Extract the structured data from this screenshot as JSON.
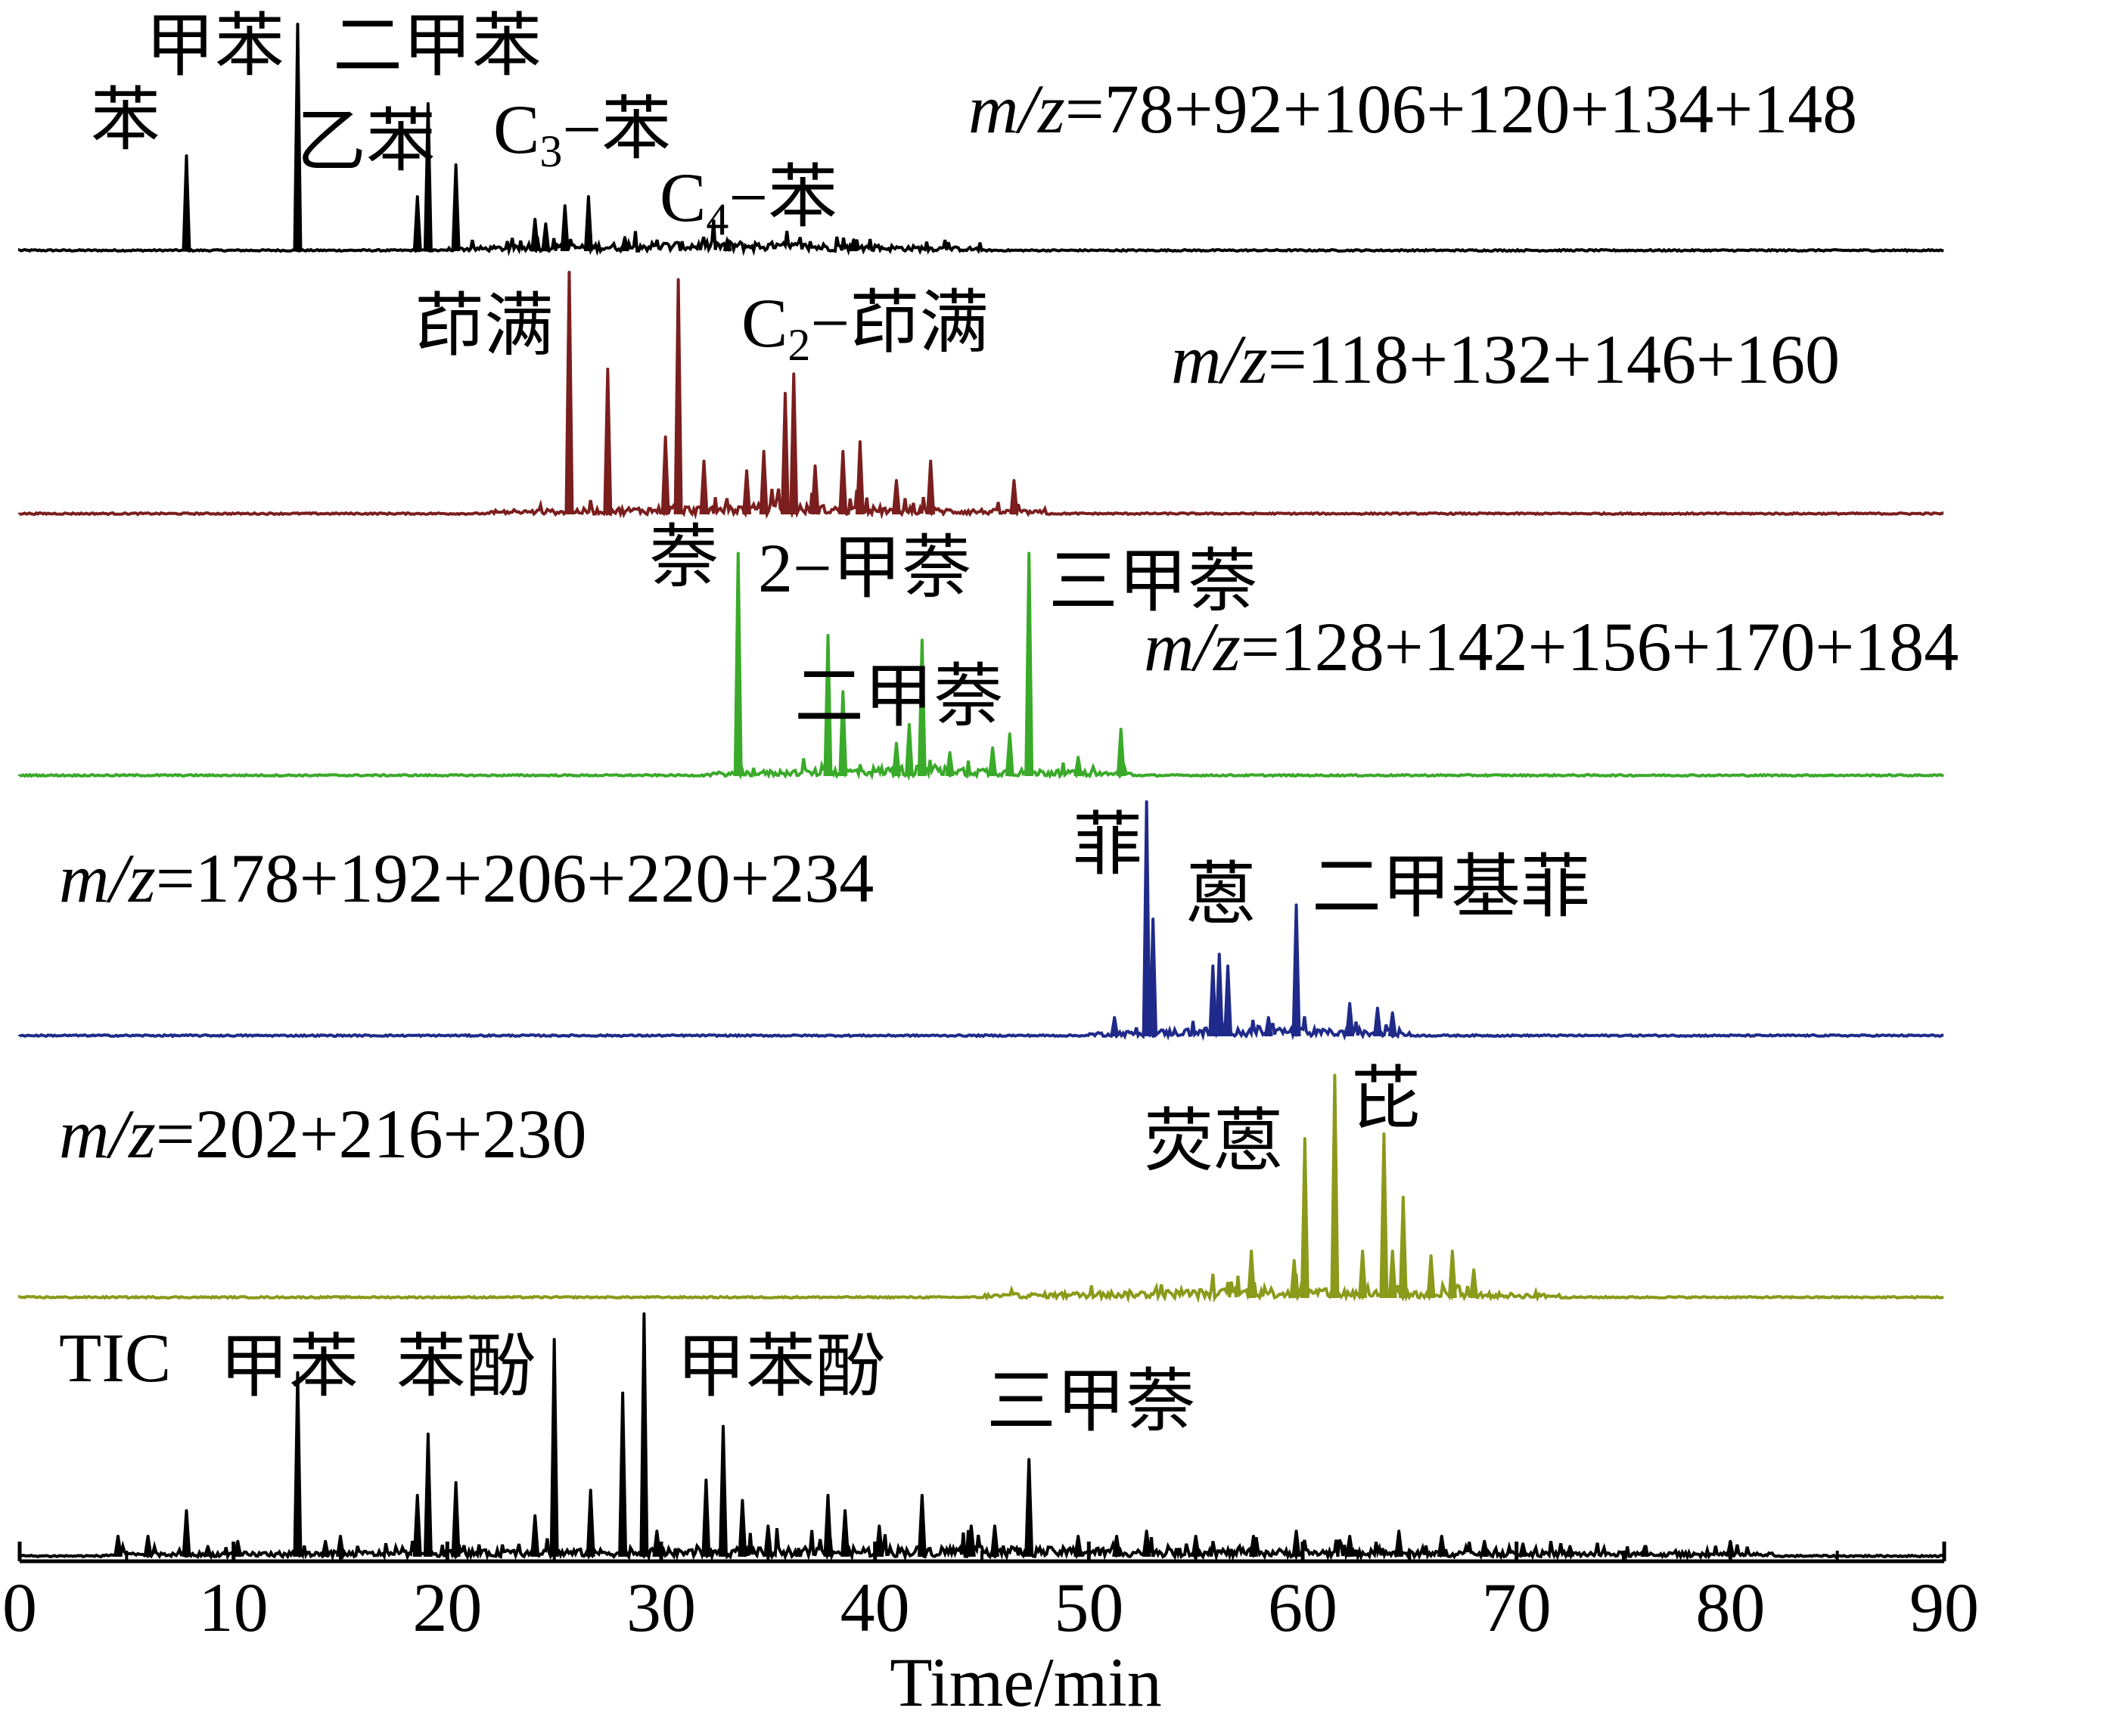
{
  "chart_data": {
    "type": "line",
    "x_axis": {
      "label": "Time/min",
      "range": [
        0,
        90
      ],
      "ticks": [
        "0",
        "10",
        "20",
        "30",
        "40",
        "50",
        "60",
        "70",
        "80",
        "90"
      ]
    },
    "grid": false,
    "panels": [
      {
        "id": "p1",
        "color": "#000000",
        "ion_label": "m/z=78+92+106+120+134+148",
        "ion_prefix": "m/z",
        "ion_values": "=78+92+106+120+134+148",
        "annotations": [
          "苯",
          "甲苯",
          "二甲苯",
          "乙苯",
          "C3−苯",
          "C4−苯"
        ],
        "peaks": [
          {
            "t": 7.8,
            "h": 0.42
          },
          {
            "t": 13.0,
            "h": 1.0
          },
          {
            "t": 18.6,
            "h": 0.24
          },
          {
            "t": 19.1,
            "h": 0.65
          },
          {
            "t": 20.4,
            "h": 0.38
          },
          {
            "t": 24.1,
            "h": 0.14
          },
          {
            "t": 24.6,
            "h": 0.12
          },
          {
            "t": 25.5,
            "h": 0.2
          },
          {
            "t": 26.6,
            "h": 0.24
          },
          {
            "t": 28.3,
            "h": 0.06
          },
          {
            "t": 33.1,
            "h": 0.05
          },
          {
            "t": 39.0,
            "h": 0.05
          }
        ]
      },
      {
        "id": "p2",
        "color": "#7b1e1e",
        "ion_label": "m/z=118+132+146+160",
        "ion_prefix": "m/z",
        "ion_values": "=118+132+146+160",
        "annotations": [
          "茚满",
          "C2−茚满"
        ],
        "peaks": [
          {
            "t": 25.7,
            "h": 1.0
          },
          {
            "t": 27.5,
            "h": 0.6
          },
          {
            "t": 30.2,
            "h": 0.32
          },
          {
            "t": 30.8,
            "h": 0.97
          },
          {
            "t": 32.0,
            "h": 0.22
          },
          {
            "t": 34.0,
            "h": 0.18
          },
          {
            "t": 34.8,
            "h": 0.26
          },
          {
            "t": 35.8,
            "h": 0.5
          },
          {
            "t": 36.2,
            "h": 0.58
          },
          {
            "t": 37.2,
            "h": 0.2
          },
          {
            "t": 38.5,
            "h": 0.26
          },
          {
            "t": 39.3,
            "h": 0.3
          },
          {
            "t": 41.0,
            "h": 0.14
          },
          {
            "t": 42.6,
            "h": 0.22
          },
          {
            "t": 46.5,
            "h": 0.14
          }
        ]
      },
      {
        "id": "p3",
        "color": "#3aaa2a",
        "ion_label": "m/z=128+142+156+170+184",
        "ion_prefix": "m/z",
        "ion_values": "=128+142+156+170+184",
        "annotations": [
          "萘",
          "2−甲萘",
          "二甲萘",
          "三甲萘"
        ],
        "peaks": [
          {
            "t": 33.6,
            "h": 0.95
          },
          {
            "t": 37.8,
            "h": 0.6
          },
          {
            "t": 38.5,
            "h": 0.36
          },
          {
            "t": 41.0,
            "h": 0.14
          },
          {
            "t": 41.6,
            "h": 0.22
          },
          {
            "t": 42.2,
            "h": 0.58
          },
          {
            "t": 43.5,
            "h": 0.1
          },
          {
            "t": 45.5,
            "h": 0.12
          },
          {
            "t": 46.3,
            "h": 0.18
          },
          {
            "t": 47.2,
            "h": 0.95
          },
          {
            "t": 49.5,
            "h": 0.08
          },
          {
            "t": 51.5,
            "h": 0.2
          }
        ]
      },
      {
        "id": "p4",
        "color": "#1f2a8a",
        "ion_label": "m/z=178+192+206+220+234",
        "ion_prefix": "m/z",
        "ion_values": "=178+192+206+220+234",
        "annotations": [
          "菲",
          "蒽",
          "二甲基菲"
        ],
        "peaks": [
          {
            "t": 51.2,
            "h": 0.08
          },
          {
            "t": 52.7,
            "h": 1.0
          },
          {
            "t": 53.0,
            "h": 0.5
          },
          {
            "t": 55.8,
            "h": 0.3
          },
          {
            "t": 56.1,
            "h": 0.35
          },
          {
            "t": 56.5,
            "h": 0.3
          },
          {
            "t": 58.4,
            "h": 0.08
          },
          {
            "t": 59.7,
            "h": 0.56
          },
          {
            "t": 62.2,
            "h": 0.14
          },
          {
            "t": 63.5,
            "h": 0.12
          },
          {
            "t": 64.2,
            "h": 0.1
          }
        ]
      },
      {
        "id": "p5",
        "color": "#8a9a1a",
        "ion_label": "m/z=202+216+230",
        "ion_prefix": "m/z",
        "ion_values": "=202+216+230",
        "annotations": [
          "荧蒽",
          "芘"
        ],
        "peaks": [
          {
            "t": 57.6,
            "h": 0.2
          },
          {
            "t": 59.6,
            "h": 0.16
          },
          {
            "t": 60.1,
            "h": 0.68
          },
          {
            "t": 61.5,
            "h": 0.95
          },
          {
            "t": 62.8,
            "h": 0.2
          },
          {
            "t": 63.8,
            "h": 0.7
          },
          {
            "t": 64.2,
            "h": 0.2
          },
          {
            "t": 64.7,
            "h": 0.43
          },
          {
            "t": 66.0,
            "h": 0.18
          },
          {
            "t": 67.0,
            "h": 0.2
          },
          {
            "t": 68.0,
            "h": 0.12
          }
        ]
      },
      {
        "id": "p6",
        "color": "#000000",
        "ion_label": "TIC",
        "ion_prefix": "",
        "ion_values": "TIC",
        "annotations": [
          "甲苯",
          "苯酚",
          "甲苯酚",
          "三甲萘"
        ],
        "peaks": [
          {
            "t": 4.6,
            "h": 0.08
          },
          {
            "t": 6.0,
            "h": 0.08
          },
          {
            "t": 7.8,
            "h": 0.18
          },
          {
            "t": 8.8,
            "h": 0.04
          },
          {
            "t": 10.2,
            "h": 0.06
          },
          {
            "t": 13.0,
            "h": 0.72
          },
          {
            "t": 14.3,
            "h": 0.06
          },
          {
            "t": 15.0,
            "h": 0.08
          },
          {
            "t": 18.6,
            "h": 0.24
          },
          {
            "t": 19.1,
            "h": 0.48
          },
          {
            "t": 20.4,
            "h": 0.29
          },
          {
            "t": 24.1,
            "h": 0.16
          },
          {
            "t": 25.0,
            "h": 0.85
          },
          {
            "t": 26.7,
            "h": 0.26
          },
          {
            "t": 28.2,
            "h": 0.64
          },
          {
            "t": 29.2,
            "h": 0.95
          },
          {
            "t": 29.8,
            "h": 0.1
          },
          {
            "t": 32.1,
            "h": 0.3
          },
          {
            "t": 32.9,
            "h": 0.51
          },
          {
            "t": 33.8,
            "h": 0.22
          },
          {
            "t": 35.0,
            "h": 0.12
          },
          {
            "t": 37.8,
            "h": 0.24
          },
          {
            "t": 38.6,
            "h": 0.18
          },
          {
            "t": 40.2,
            "h": 0.12
          },
          {
            "t": 42.2,
            "h": 0.24
          },
          {
            "t": 44.5,
            "h": 0.12
          },
          {
            "t": 45.6,
            "h": 0.12
          },
          {
            "t": 47.2,
            "h": 0.38
          },
          {
            "t": 49.5,
            "h": 0.08
          },
          {
            "t": 51.3,
            "h": 0.08
          },
          {
            "t": 52.7,
            "h": 0.1
          },
          {
            "t": 55.0,
            "h": 0.08
          },
          {
            "t": 57.7,
            "h": 0.08
          },
          {
            "t": 59.7,
            "h": 0.1
          },
          {
            "t": 62.2,
            "h": 0.08
          },
          {
            "t": 64.5,
            "h": 0.1
          },
          {
            "t": 66.5,
            "h": 0.08
          },
          {
            "t": 68.5,
            "h": 0.06
          },
          {
            "t": 70.3,
            "h": 0.05
          },
          {
            "t": 72.5,
            "h": 0.04
          },
          {
            "t": 76.0,
            "h": 0.04
          },
          {
            "t": 80.0,
            "h": 0.06
          }
        ]
      }
    ]
  }
}
